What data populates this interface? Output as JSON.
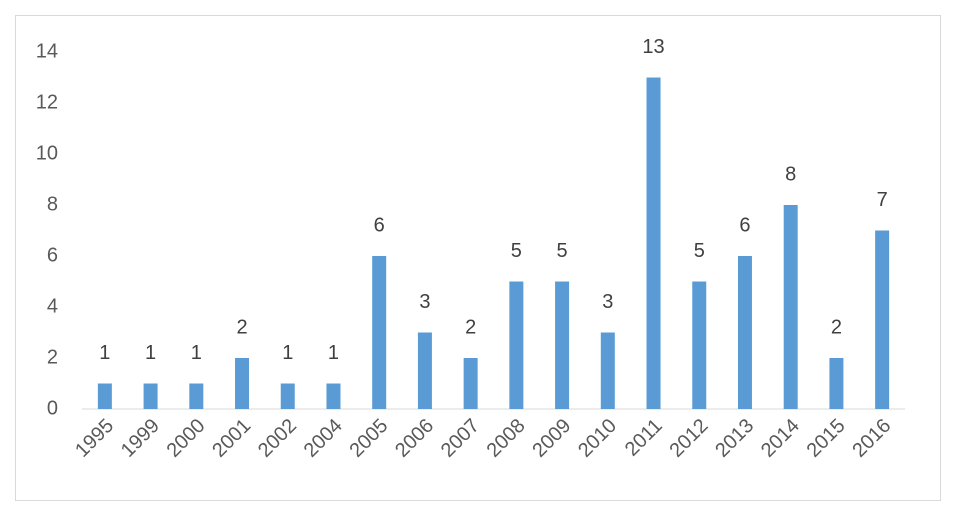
{
  "chart_data": {
    "type": "bar",
    "categories": [
      "1995",
      "1999",
      "2000",
      "2001",
      "2002",
      "2004",
      "2005",
      "2006",
      "2007",
      "2008",
      "2009",
      "2010",
      "2011",
      "2012",
      "2013",
      "2014",
      "2015",
      "2016"
    ],
    "values": [
      1,
      1,
      1,
      2,
      1,
      1,
      6,
      3,
      2,
      5,
      5,
      3,
      13,
      5,
      6,
      8,
      2,
      7
    ],
    "color": "#5b9bd5",
    "ylim": [
      0,
      14
    ],
    "yticks": [
      0,
      2,
      4,
      6,
      8,
      10,
      12,
      14
    ],
    "grid": false
  }
}
